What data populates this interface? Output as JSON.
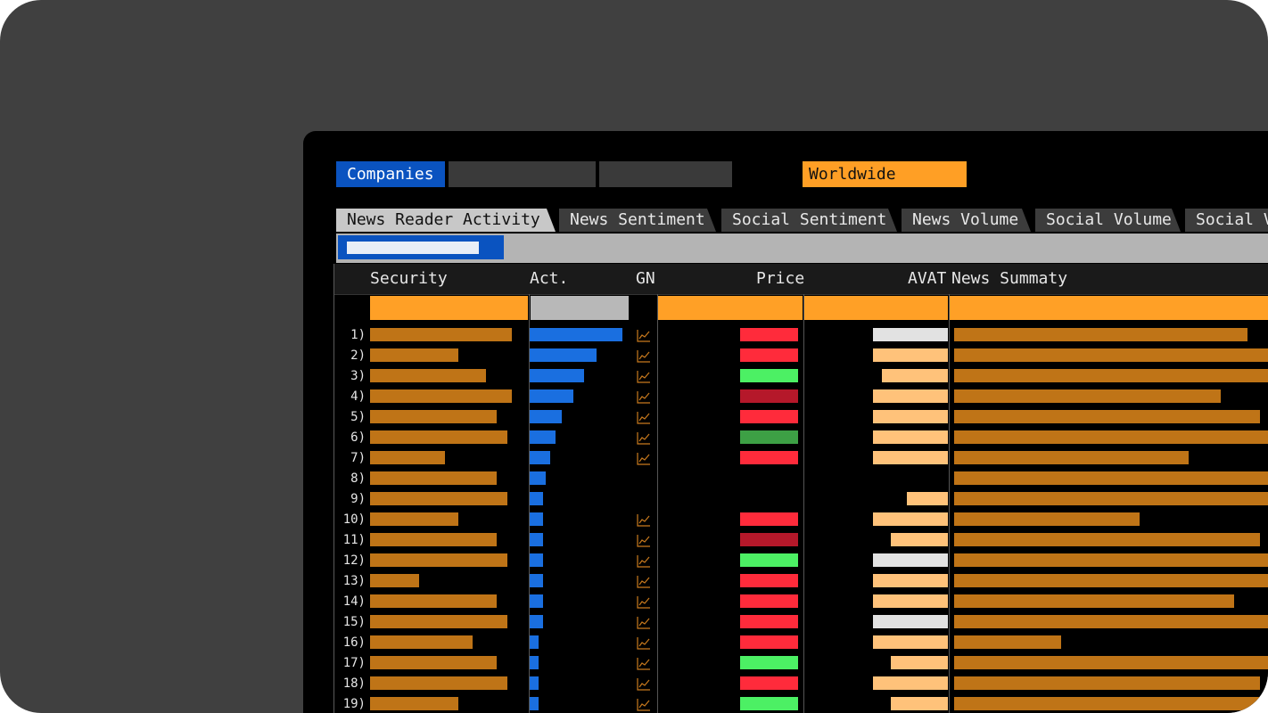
{
  "filters": {
    "scope_label": "Companies",
    "region_label": "Worldwide"
  },
  "tabs": [
    {
      "label": "News Reader Activity",
      "active": true
    },
    {
      "label": "News Sentiment",
      "active": false
    },
    {
      "label": "Social Sentiment",
      "active": false
    },
    {
      "label": "News Volume",
      "active": false
    },
    {
      "label": "Social Volume",
      "active": false
    },
    {
      "label": "Social V",
      "active": false
    }
  ],
  "table": {
    "columns": {
      "security": "Security",
      "act": "Act.",
      "gn": "GN",
      "price": "Price",
      "avat": "AVAT",
      "news": "News Summaty"
    },
    "rows": [
      {
        "num": "1)",
        "security": 0.93,
        "act": 1.0,
        "gn": true,
        "price": "red",
        "avat": 0.82,
        "avat_color": "white",
        "news": 0.9
      },
      {
        "num": "2)",
        "security": 0.58,
        "act": 0.72,
        "gn": true,
        "price": "red",
        "avat": 0.82,
        "avat_color": "peach",
        "news": 1.0
      },
      {
        "num": "3)",
        "security": 0.76,
        "act": 0.59,
        "gn": true,
        "price": "green",
        "avat": 0.73,
        "avat_color": "peach",
        "news": 1.0
      },
      {
        "num": "4)",
        "security": 0.93,
        "act": 0.47,
        "gn": true,
        "price": "darkred",
        "avat": 0.82,
        "avat_color": "peach",
        "news": 0.82
      },
      {
        "num": "5)",
        "security": 0.83,
        "act": 0.35,
        "gn": true,
        "price": "red",
        "avat": 0.82,
        "avat_color": "peach",
        "news": 0.94
      },
      {
        "num": "6)",
        "security": 0.9,
        "act": 0.28,
        "gn": true,
        "price": "darkgreen",
        "avat": 0.82,
        "avat_color": "peach",
        "news": 1.0
      },
      {
        "num": "7)",
        "security": 0.49,
        "act": 0.22,
        "gn": true,
        "price": "red",
        "avat": 0.82,
        "avat_color": "peach",
        "news": 0.72
      },
      {
        "num": "8)",
        "security": 0.83,
        "act": 0.17,
        "gn": false,
        "price": "none",
        "avat": 0.0,
        "avat_color": "peach",
        "news": 1.0
      },
      {
        "num": "9)",
        "security": 0.9,
        "act": 0.14,
        "gn": false,
        "price": "none",
        "avat": 0.45,
        "avat_color": "peach",
        "news": 1.0
      },
      {
        "num": "10)",
        "security": 0.58,
        "act": 0.14,
        "gn": true,
        "price": "red",
        "avat": 0.82,
        "avat_color": "peach",
        "news": 0.57
      },
      {
        "num": "11)",
        "security": 0.83,
        "act": 0.14,
        "gn": true,
        "price": "darkred",
        "avat": 0.63,
        "avat_color": "peach",
        "news": 0.94
      },
      {
        "num": "12)",
        "security": 0.9,
        "act": 0.14,
        "gn": true,
        "price": "green",
        "avat": 0.82,
        "avat_color": "white",
        "news": 1.0
      },
      {
        "num": "13)",
        "security": 0.32,
        "act": 0.14,
        "gn": true,
        "price": "red",
        "avat": 0.82,
        "avat_color": "peach",
        "news": 1.0
      },
      {
        "num": "14)",
        "security": 0.83,
        "act": 0.14,
        "gn": true,
        "price": "red",
        "avat": 0.82,
        "avat_color": "peach",
        "news": 0.86
      },
      {
        "num": "15)",
        "security": 0.9,
        "act": 0.14,
        "gn": true,
        "price": "red",
        "avat": 0.82,
        "avat_color": "white",
        "news": 1.0
      },
      {
        "num": "16)",
        "security": 0.67,
        "act": 0.1,
        "gn": true,
        "price": "red",
        "avat": 0.82,
        "avat_color": "peach",
        "news": 0.33
      },
      {
        "num": "17)",
        "security": 0.83,
        "act": 0.1,
        "gn": true,
        "price": "green",
        "avat": 0.63,
        "avat_color": "peach",
        "news": 1.0
      },
      {
        "num": "18)",
        "security": 0.9,
        "act": 0.1,
        "gn": true,
        "price": "red",
        "avat": 0.82,
        "avat_color": "peach",
        "news": 0.94
      },
      {
        "num": "19)",
        "security": 0.58,
        "act": 0.1,
        "gn": true,
        "price": "green",
        "avat": 0.63,
        "avat_color": "peach",
        "news": 1.0
      }
    ]
  },
  "colors": {
    "security_bar": "#bf7417",
    "act_bar": "#1a6fe0",
    "news_bar": "#bf7417",
    "sort_orange": "#ffa026",
    "sort_gray": "#b8b8b8",
    "price_red": "#ff2b3b",
    "price_darkred": "#b5182a",
    "price_green": "#4cf064",
    "price_darkgreen": "#3da045",
    "avat_peach": "#ffc27a",
    "avat_white": "#e2e2e2",
    "sparkline": "#c97a1d"
  }
}
